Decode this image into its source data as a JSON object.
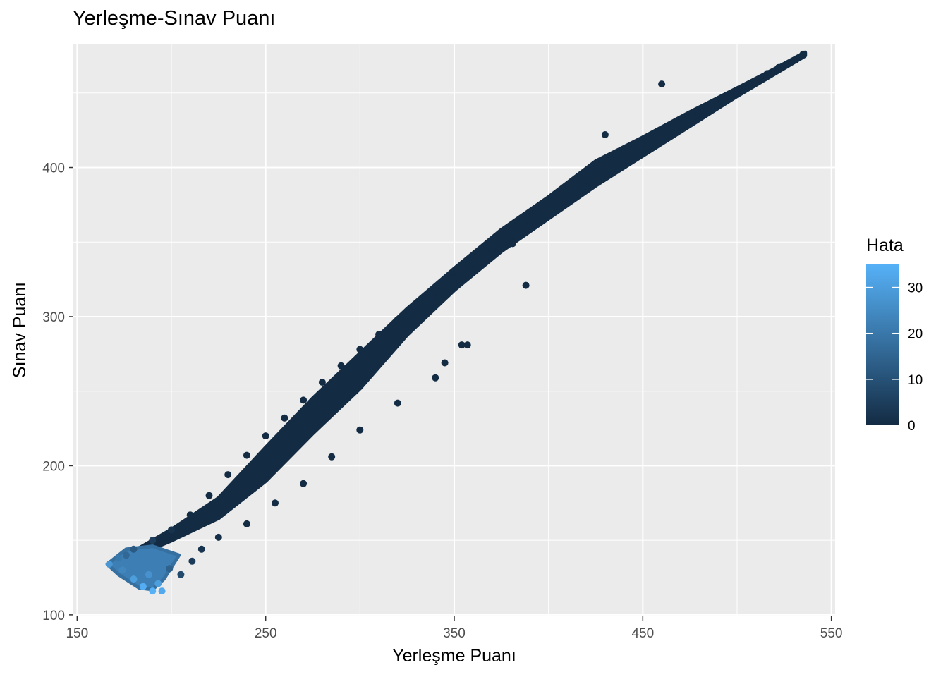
{
  "chart_data": {
    "type": "scatter",
    "title": "Yerleşme-Sınav Puanı",
    "xlabel": "Yerleşme Puanı",
    "ylabel": "Sınav Puanı",
    "xlim": [
      148,
      552
    ],
    "ylim": [
      99,
      483
    ],
    "x_ticks": [
      150,
      250,
      350,
      450,
      550
    ],
    "y_ticks": [
      100,
      200,
      300,
      400
    ],
    "x_minor": [
      200,
      300,
      400,
      500
    ],
    "y_minor": [
      150,
      250,
      350,
      450
    ],
    "grid": true,
    "background": "#ebebeb",
    "color_scale": {
      "title": "Hata",
      "low": 0,
      "high": 35,
      "low_color": "#132b43",
      "high_color": "#56b1f7",
      "breaks": [
        0,
        10,
        20,
        30
      ]
    },
    "legend_position": "right",
    "series": [
      {
        "points": [
          {
            "x": 535,
            "y": 476,
            "c": 0
          },
          {
            "x": 531,
            "y": 472,
            "c": 0
          },
          {
            "x": 522,
            "y": 467,
            "c": 0
          },
          {
            "x": 516,
            "y": 463,
            "c": 0
          },
          {
            "x": 510,
            "y": 457,
            "c": 0
          },
          {
            "x": 500,
            "y": 450,
            "c": 0
          },
          {
            "x": 490,
            "y": 442,
            "c": 0
          },
          {
            "x": 480,
            "y": 436,
            "c": 0
          },
          {
            "x": 470,
            "y": 428,
            "c": 0
          },
          {
            "x": 462,
            "y": 421,
            "c": 0
          },
          {
            "x": 450,
            "y": 412,
            "c": 0
          },
          {
            "x": 442,
            "y": 405,
            "c": 0
          },
          {
            "x": 430,
            "y": 396,
            "c": 0
          },
          {
            "x": 420,
            "y": 387,
            "c": 0
          },
          {
            "x": 410,
            "y": 380,
            "c": 0
          },
          {
            "x": 400,
            "y": 371,
            "c": 0
          },
          {
            "x": 390,
            "y": 363,
            "c": 0
          },
          {
            "x": 380,
            "y": 353,
            "c": 0
          },
          {
            "x": 370,
            "y": 345,
            "c": 0
          },
          {
            "x": 360,
            "y": 336,
            "c": 0
          },
          {
            "x": 350,
            "y": 326,
            "c": 0
          },
          {
            "x": 340,
            "y": 317,
            "c": 0
          },
          {
            "x": 330,
            "y": 308,
            "c": 0
          },
          {
            "x": 320,
            "y": 298,
            "c": 0
          },
          {
            "x": 310,
            "y": 288,
            "c": 0
          },
          {
            "x": 300,
            "y": 278,
            "c": 0
          },
          {
            "x": 290,
            "y": 267,
            "c": 0
          },
          {
            "x": 280,
            "y": 256,
            "c": 0
          },
          {
            "x": 270,
            "y": 244,
            "c": 0
          },
          {
            "x": 260,
            "y": 232,
            "c": 0
          },
          {
            "x": 250,
            "y": 220,
            "c": 0
          },
          {
            "x": 240,
            "y": 207,
            "c": 0
          },
          {
            "x": 230,
            "y": 194,
            "c": 0
          },
          {
            "x": 220,
            "y": 180,
            "c": 0
          },
          {
            "x": 210,
            "y": 167,
            "c": 0
          },
          {
            "x": 200,
            "y": 157,
            "c": 2
          },
          {
            "x": 190,
            "y": 150,
            "c": 5
          },
          {
            "x": 180,
            "y": 144,
            "c": 12
          },
          {
            "x": 172,
            "y": 138,
            "c": 20
          },
          {
            "x": 167,
            "y": 134,
            "c": 28
          },
          {
            "x": 174,
            "y": 130,
            "c": 24
          },
          {
            "x": 180,
            "y": 124,
            "c": 30
          },
          {
            "x": 185,
            "y": 119,
            "c": 34
          },
          {
            "x": 190,
            "y": 116,
            "c": 35
          },
          {
            "x": 195,
            "y": 116,
            "c": 33
          },
          {
            "x": 176,
            "y": 140,
            "c": 16
          },
          {
            "x": 183,
            "y": 133,
            "c": 22
          },
          {
            "x": 188,
            "y": 127,
            "c": 27
          },
          {
            "x": 193,
            "y": 121,
            "c": 30
          },
          {
            "x": 199,
            "y": 131,
            "c": 14
          },
          {
            "x": 205,
            "y": 127,
            "c": 8
          },
          {
            "x": 211,
            "y": 136,
            "c": 4
          },
          {
            "x": 216,
            "y": 144,
            "c": 2
          },
          {
            "x": 225,
            "y": 152,
            "c": 1
          },
          {
            "x": 240,
            "y": 161,
            "c": 0
          },
          {
            "x": 255,
            "y": 175,
            "c": 0
          },
          {
            "x": 270,
            "y": 188,
            "c": 0
          },
          {
            "x": 285,
            "y": 206,
            "c": 0
          },
          {
            "x": 300,
            "y": 224,
            "c": 0
          },
          {
            "x": 320,
            "y": 242,
            "c": 0
          },
          {
            "x": 340,
            "y": 259,
            "c": 0
          },
          {
            "x": 345,
            "y": 269,
            "c": 0
          },
          {
            "x": 357,
            "y": 281,
            "c": 0
          },
          {
            "x": 354,
            "y": 281,
            "c": 0
          },
          {
            "x": 388,
            "y": 321,
            "c": 0
          },
          {
            "x": 381,
            "y": 349,
            "c": 0
          },
          {
            "x": 430,
            "y": 422,
            "c": 0
          },
          {
            "x": 460,
            "y": 456,
            "c": 0
          }
        ]
      }
    ]
  }
}
